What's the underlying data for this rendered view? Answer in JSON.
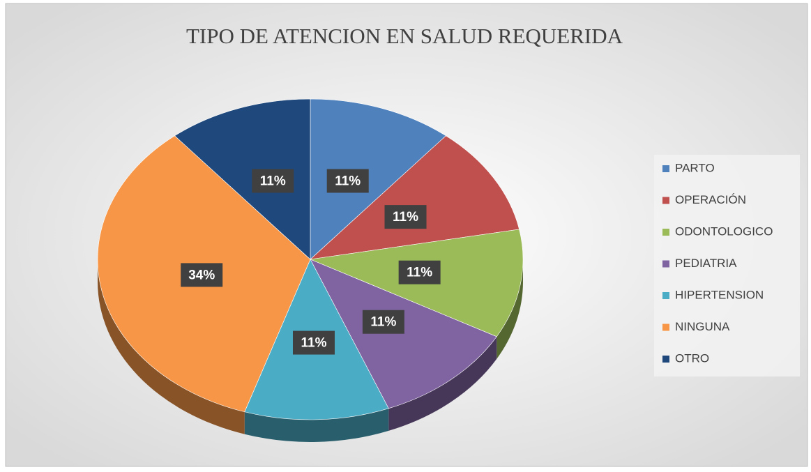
{
  "chart_data": {
    "type": "pie",
    "title": "TIPO DE ATENCION EN SALUD REQUERIDA",
    "categories": [
      "PARTO",
      "OPERACIÓN",
      "ODONTOLOGICO",
      "PEDIATRIA",
      "HIPERTENSION",
      "NINGUNA",
      "OTRO"
    ],
    "values": [
      11,
      11,
      11,
      11,
      11,
      34,
      11
    ],
    "value_labels": [
      "11%",
      "11%",
      "11%",
      "11%",
      "11%",
      "34%",
      "11%"
    ],
    "colors": [
      "#4f81bd",
      "#c0504d",
      "#9bbb59",
      "#8064a2",
      "#4bacc6",
      "#f79646",
      "#1f497d"
    ],
    "legend": "right"
  }
}
